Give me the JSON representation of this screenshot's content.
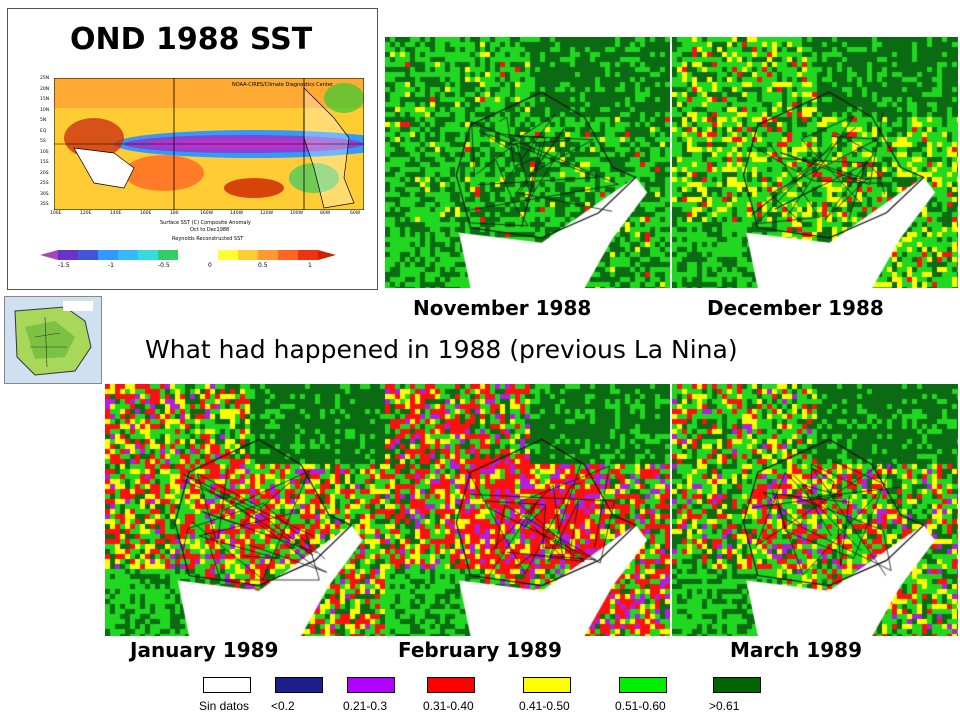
{
  "sst": {
    "title": "OND 1988 SST",
    "source": "NOAA-CIRES/Climate Diagnostics Center",
    "caption_line1": "Surface SST (C) Composite Anomaly",
    "caption_line2": "Oct to Dec1988",
    "caption_line3": "Reynolds Reconstructed SST",
    "lat_labels": [
      "25N",
      "20N",
      "15N",
      "10N",
      "5N",
      "EQ",
      "5S",
      "10S",
      "15S",
      "20S",
      "25S",
      "30S",
      "35S"
    ],
    "lon_labels": [
      "100E",
      "120E",
      "140E",
      "160E",
      "180",
      "160W",
      "140W",
      "120W",
      "100W",
      "80W",
      "60W"
    ],
    "colorbar_labels": [
      "-1.5",
      "-1",
      "-0.5",
      "0",
      "0.5",
      "1"
    ]
  },
  "subtitle": "What had happened in 1988 (previous La Nina)",
  "panels": {
    "nov": "November 1988",
    "dec": "December 1988",
    "jan": "January 1989",
    "feb": "February 1989",
    "mar": "March 1989"
  },
  "legend": [
    {
      "label": "Sin datos",
      "color": "#ffffff"
    },
    {
      "label": "<0.2",
      "color": "#1a1f8c"
    },
    {
      "label": "0.21-0.3",
      "color": "#b000ff"
    },
    {
      "label": "0.31-0.40",
      "color": "#ff0000"
    },
    {
      "label": "0.41-0.50",
      "color": "#ffff00"
    },
    {
      "label": "0.51-0.60",
      "color": "#00ee00"
    },
    {
      "label": ">0.61",
      "color": "#006400"
    }
  ],
  "colors": {
    "dark_green": "#0b6b12",
    "green": "#1fd81f",
    "yellow": "#ffff00",
    "red": "#ff1010",
    "purple": "#b020e0"
  }
}
